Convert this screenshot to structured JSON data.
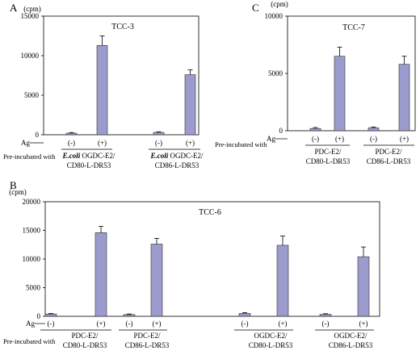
{
  "chart_data": [
    {
      "panel": "A",
      "type": "bar",
      "title": "TCC-3",
      "ylabel": "(cpm)",
      "ylim": [
        0,
        15000
      ],
      "yticks": [
        0,
        5000,
        10000,
        15000
      ],
      "ag_label": "Ag",
      "ag_conditions": [
        "(-)",
        "(+)"
      ],
      "pre_label": "Pre-incubated with",
      "groups": [
        {
          "name_italic": "E.coli",
          "name_line1": " OGDC-E2/",
          "name_line2": "CD80-L-DR53",
          "values": [
            200,
            11300
          ],
          "errors": [
            80,
            1200
          ]
        },
        {
          "name_italic": "E.coli",
          "name_line1": " OGDC-E2/",
          "name_line2": "CD86-L-DR53",
          "values": [
            300,
            7600
          ],
          "errors": [
            80,
            600
          ]
        }
      ],
      "bar_color": "#9b9bcd"
    },
    {
      "panel": "C",
      "type": "bar",
      "title": "TCC-7",
      "ylabel": "(cpm)",
      "ylim": [
        0,
        10000
      ],
      "yticks": [
        0,
        5000,
        10000
      ],
      "ag_label": "Ag",
      "ag_conditions": [
        "(-)",
        "(+)"
      ],
      "pre_label": "Pre-incubated with",
      "groups": [
        {
          "name_italic": "",
          "name_line1": "PDC-E2/",
          "name_line2": "CD80-L-DR53",
          "values": [
            200,
            6500
          ],
          "errors": [
            80,
            800
          ]
        },
        {
          "name_italic": "",
          "name_line1": "PDC-E2/",
          "name_line2": "CD86-L-DR53",
          "values": [
            250,
            5800
          ],
          "errors": [
            80,
            700
          ]
        }
      ],
      "bar_color": "#9b9bcd"
    },
    {
      "panel": "B",
      "type": "bar",
      "title": "TCC-6",
      "ylabel": "(cpm)",
      "ylim": [
        0,
        20000
      ],
      "yticks": [
        0,
        5000,
        10000,
        15000,
        20000
      ],
      "ag_label": "Ag",
      "ag_conditions": [
        "(-)",
        "(+)"
      ],
      "pre_label": "Pre-incubated with",
      "groups": [
        {
          "name_italic": "",
          "name_line1": "PDC-E2/",
          "name_line2": "CD80-L-DR53",
          "values": [
            400,
            14600
          ],
          "errors": [
            100,
            1100
          ]
        },
        {
          "name_italic": "",
          "name_line1": "PDC-E2/",
          "name_line2": "CD86-L-DR53",
          "values": [
            300,
            12600
          ],
          "errors": [
            100,
            1000
          ]
        },
        {
          "name_italic": "",
          "name_line1": "OGDC-E2/",
          "name_line2": "CD80-L-DR53",
          "values": [
            500,
            12400
          ],
          "errors": [
            150,
            1600
          ]
        },
        {
          "name_italic": "",
          "name_line1": "OGDC-E2/",
          "name_line2": "CD86-L-DR53",
          "values": [
            350,
            10400
          ],
          "errors": [
            100,
            1700
          ]
        }
      ],
      "bar_color": "#9b9bcd"
    }
  ]
}
